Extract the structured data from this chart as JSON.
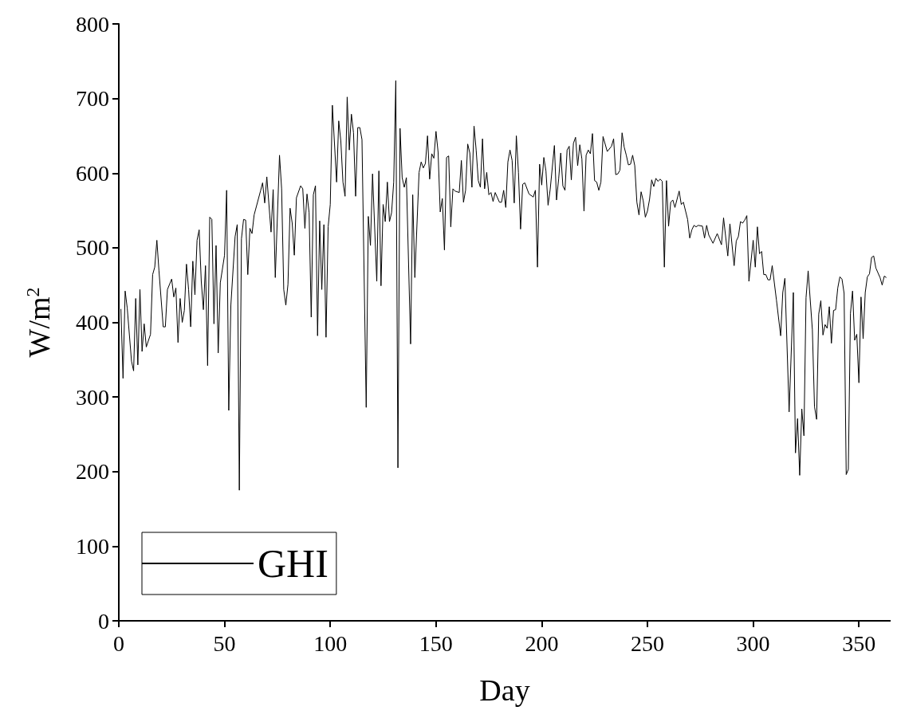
{
  "chart_data": {
    "type": "line",
    "xlabel": "Day",
    "ylabel": "W/m$^{2}$",
    "xlim": [
      0,
      365
    ],
    "ylim": [
      0,
      800
    ],
    "xticks": [
      0,
      50,
      100,
      150,
      200,
      250,
      300,
      350
    ],
    "yticks": [
      0,
      100,
      200,
      300,
      400,
      500,
      600,
      700,
      800
    ],
    "grid": false,
    "legend": "bottom left",
    "marker": "none",
    "line_style": "solid",
    "series": [
      {
        "name": "GHI",
        "color": "#000000",
        "x": [
          1,
          2,
          3,
          4,
          6,
          7,
          8,
          9,
          10,
          11,
          12,
          13,
          15,
          16,
          17,
          18,
          19,
          21,
          22,
          23,
          25,
          26,
          27,
          28,
          29,
          30,
          31,
          32,
          33,
          34,
          35,
          36,
          37,
          38,
          39,
          40,
          41,
          42,
          43,
          44,
          45,
          46,
          47,
          48,
          50,
          51,
          52,
          53,
          55,
          56,
          57,
          58,
          59,
          60,
          61,
          62,
          63,
          64,
          67,
          68,
          69,
          70,
          72,
          73,
          74,
          76,
          77,
          78,
          79,
          80,
          81,
          82,
          83,
          84,
          86,
          87,
          88,
          89,
          90,
          91,
          92,
          93,
          94,
          95,
          96,
          97,
          98,
          99,
          100,
          101,
          103,
          104,
          105,
          106,
          107,
          108,
          109,
          110,
          111,
          112,
          113,
          114,
          115,
          117,
          118,
          119,
          120,
          122,
          123,
          124,
          125,
          126,
          127,
          128,
          129,
          130,
          131,
          132,
          133,
          134,
          135,
          136,
          138,
          139,
          140,
          142,
          143,
          144,
          145,
          146,
          147,
          148,
          149,
          150,
          151,
          152,
          153,
          154,
          155,
          156,
          157,
          158,
          159,
          161,
          162,
          163,
          164,
          165,
          166,
          167,
          168,
          169,
          170,
          171,
          172,
          173,
          174,
          175,
          176,
          177,
          178,
          180,
          181,
          182,
          183,
          184,
          185,
          186,
          187,
          188,
          189,
          190,
          191,
          192,
          194,
          196,
          197,
          198,
          199,
          200,
          201,
          202,
          203,
          204,
          206,
          207,
          208,
          209,
          210,
          211,
          212,
          213,
          214,
          215,
          216,
          217,
          218,
          219,
          220,
          221,
          222,
          223,
          224,
          225,
          226,
          227,
          228,
          229,
          231,
          233,
          234,
          235,
          236,
          237,
          238,
          239,
          240,
          241,
          242,
          243,
          244,
          245,
          246,
          247,
          248,
          249,
          250,
          251,
          252,
          253,
          254,
          255,
          256,
          257,
          258,
          259,
          260,
          261,
          262,
          263,
          264,
          265,
          266,
          267,
          269,
          270,
          271,
          272,
          273,
          274,
          276,
          277,
          278,
          279,
          281,
          283,
          285,
          286,
          288,
          289,
          291,
          292,
          293,
          294,
          295,
          296,
          297,
          298,
          300,
          301,
          302,
          303,
          304,
          305,
          306,
          307,
          308,
          309,
          311,
          313,
          314,
          315,
          317,
          319,
          320,
          321,
          322,
          323,
          324,
          325,
          326,
          328,
          329,
          330,
          331,
          332,
          333,
          334,
          335,
          336,
          337,
          338,
          339,
          340,
          341,
          342,
          343,
          344,
          345,
          346,
          347,
          348,
          349,
          350,
          351,
          352,
          353,
          354,
          355,
          356,
          357,
          358,
          360,
          361,
          362,
          363
        ],
        "values": [
          418,
          325,
          442,
          419,
          348,
          335,
          432,
          343,
          444,
          361,
          398,
          367,
          384,
          464,
          474,
          510,
          469,
          394,
          394,
          444,
          458,
          434,
          446,
          373,
          432,
          400,
          416,
          478,
          444,
          394,
          482,
          437,
          510,
          524,
          455,
          417,
          476,
          342,
          541,
          538,
          398,
          503,
          359,
          453,
          490,
          577,
          282,
          423,
          515,
          531,
          175,
          512,
          538,
          537,
          464,
          526,
          519,
          544,
          576,
          587,
          560,
          595,
          521,
          578,
          460,
          624,
          579,
          444,
          423,
          451,
          553,
          533,
          490,
          567,
          583,
          579,
          526,
          572,
          547,
          407,
          571,
          583,
          382,
          536,
          444,
          531,
          380,
          528,
          558,
          691,
          588,
          670,
          643,
          588,
          569,
          702,
          631,
          679,
          654,
          569,
          661,
          661,
          645,
          286,
          542,
          503,
          599,
          455,
          603,
          449,
          558,
          535,
          588,
          535,
          547,
          588,
          724,
          205,
          660,
          594,
          581,
          594,
          371,
          571,
          460,
          601,
          615,
          607,
          613,
          650,
          592,
          626,
          620,
          656,
          628,
          548,
          566,
          497,
          621,
          623,
          528,
          579,
          576,
          574,
          617,
          561,
          577,
          639,
          627,
          581,
          663,
          631,
          590,
          581,
          646,
          579,
          601,
          571,
          574,
          562,
          574,
          561,
          561,
          577,
          554,
          615,
          631,
          617,
          560,
          650,
          601,
          525,
          585,
          587,
          572,
          568,
          577,
          474,
          612,
          584,
          621,
          603,
          557,
          578,
          637,
          564,
          592,
          627,
          583,
          577,
          631,
          636,
          591,
          640,
          648,
          610,
          638,
          619,
          549,
          624,
          631,
          626,
          653,
          590,
          588,
          577,
          588,
          649,
          629,
          636,
          646,
          598,
          599,
          604,
          654,
          635,
          624,
          611,
          612,
          624,
          610,
          561,
          544,
          575,
          563,
          541,
          549,
          565,
          591,
          582,
          593,
          589,
          592,
          589,
          474,
          590,
          529,
          561,
          564,
          554,
          565,
          576,
          558,
          561,
          538,
          513,
          524,
          530,
          528,
          530,
          529,
          513,
          530,
          517,
          506,
          519,
          504,
          540,
          489,
          532,
          476,
          509,
          515,
          535,
          533,
          537,
          543,
          455,
          510,
          474,
          528,
          492,
          495,
          464,
          464,
          457,
          457,
          476,
          430,
          382,
          440,
          459,
          280,
          440,
          225,
          271,
          195,
          284,
          248,
          433,
          469,
          390,
          287,
          270,
          411,
          429,
          383,
          397,
          392,
          421,
          372,
          416,
          417,
          446,
          461,
          458,
          439,
          196,
          203,
          412,
          442,
          376,
          384,
          319,
          434,
          378,
          440,
          461,
          465,
          487,
          489,
          473,
          460,
          450,
          462,
          460
        ]
      }
    ]
  }
}
